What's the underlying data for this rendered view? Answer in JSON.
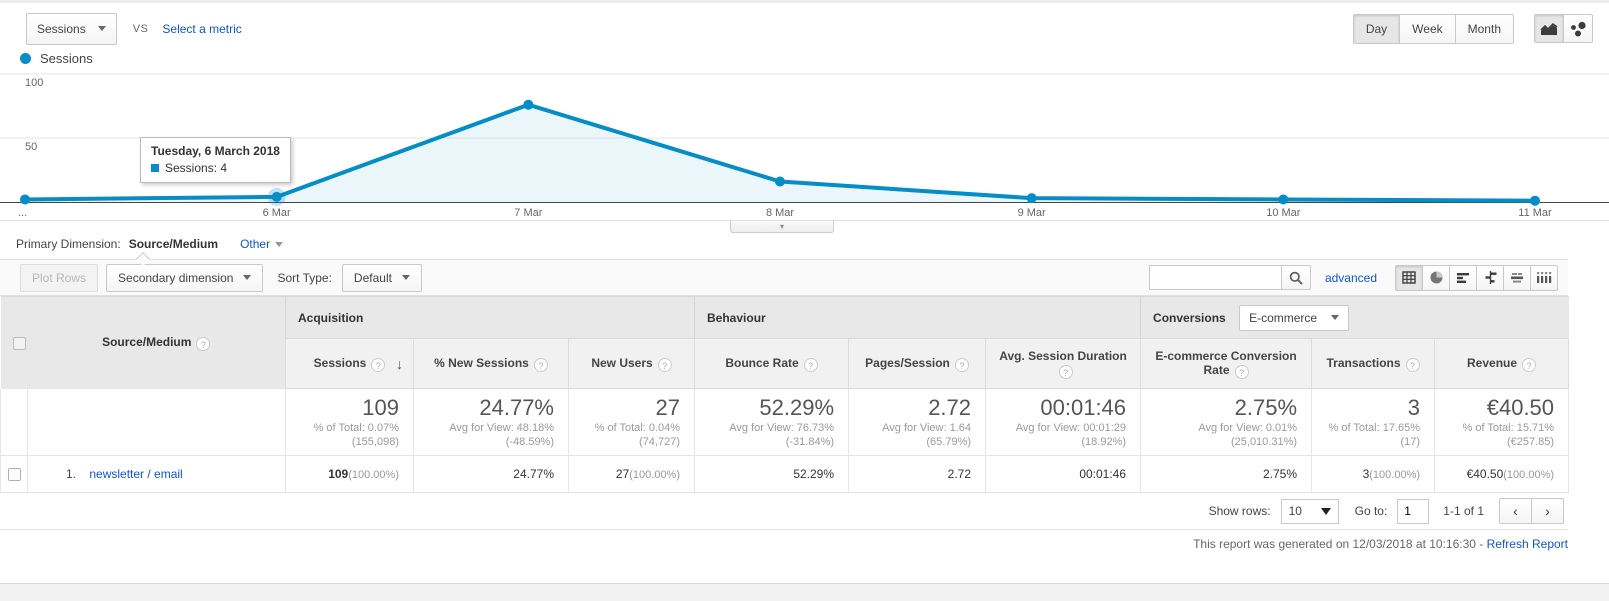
{
  "colors": {
    "accent_blue": "#058dc7",
    "link_blue": "#1155cc"
  },
  "metric_selector": {
    "selected": "Sessions",
    "vs_label": "VS",
    "select_metric_label": "Select a metric"
  },
  "granularity": {
    "options": [
      "Day",
      "Week",
      "Month"
    ],
    "selected": "Day"
  },
  "legend": {
    "label": "Sessions"
  },
  "chart_data": {
    "type": "area",
    "x": [
      "...",
      "6 Mar",
      "7 Mar",
      "8 Mar",
      "9 Mar",
      "10 Mar",
      "11 Mar"
    ],
    "series": [
      {
        "name": "Sessions",
        "values": [
          2,
          4,
          76,
          16,
          3,
          2,
          1
        ],
        "color": "#058dc7"
      }
    ],
    "ylim": [
      0,
      100
    ],
    "yticks": [
      50,
      100
    ],
    "grid": true,
    "highlight_index": 1,
    "tooltip": {
      "title": "Tuesday, 6 March 2018",
      "text": "Sessions: 4"
    }
  },
  "primary_dimension": {
    "label": "Primary Dimension:",
    "selected": "Source/Medium",
    "other_label": "Other"
  },
  "toolbar": {
    "plot_rows_label": "Plot Rows",
    "secondary_dimension_label": "Secondary dimension",
    "sort_type_label": "Sort Type:",
    "sort_type_value": "Default",
    "search_value": "",
    "advanced_label": "advanced"
  },
  "table": {
    "dimension_header": "Source/Medium",
    "groups": [
      {
        "label": "Acquisition"
      },
      {
        "label": "Behaviour"
      },
      {
        "label": "Conversions",
        "selector_value": "E-commerce"
      }
    ],
    "columns": [
      "Sessions",
      "% New Sessions",
      "New Users",
      "Bounce Rate",
      "Pages/Session",
      "Avg. Session Duration",
      "E-commerce Conversion Rate",
      "Transactions",
      "Revenue"
    ],
    "summary": [
      {
        "value": "109",
        "sub1": "% of Total: 0.07%",
        "sub2": "(155,098)"
      },
      {
        "value": "24.77%",
        "sub1": "Avg for View: 48.18%",
        "sub2": "(-48.59%)"
      },
      {
        "value": "27",
        "sub1": "% of Total: 0.04%",
        "sub2": "(74,727)"
      },
      {
        "value": "52.29%",
        "sub1": "Avg for View: 76.73%",
        "sub2": "(-31.84%)"
      },
      {
        "value": "2.72",
        "sub1": "Avg for View: 1.64",
        "sub2": "(65.79%)"
      },
      {
        "value": "00:01:46",
        "sub1": "Avg for View: 00:01:29",
        "sub2": "(18.92%)"
      },
      {
        "value": "2.75%",
        "sub1": "Avg for View: 0.01%",
        "sub2": "(25,010.31%)"
      },
      {
        "value": "3",
        "sub1": "% of Total: 17.65%",
        "sub2": "(17)"
      },
      {
        "value": "€40.50",
        "sub1": "% of Total: 15.71%",
        "sub2": "(€257.85)"
      }
    ],
    "rows": [
      {
        "index": "1.",
        "dimension": "newsletter / email",
        "cells": [
          {
            "v": "109",
            "pct": "(100.00%)"
          },
          {
            "v": "24.77%"
          },
          {
            "v": "27",
            "pct": "(100.00%)"
          },
          {
            "v": "52.29%"
          },
          {
            "v": "2.72"
          },
          {
            "v": "00:01:46"
          },
          {
            "v": "2.75%"
          },
          {
            "v": "3",
            "pct": "(100.00%)"
          },
          {
            "v": "€40.50",
            "pct": "(100.00%)"
          }
        ]
      }
    ]
  },
  "pagination": {
    "show_rows_label": "Show rows:",
    "show_rows_value": "10",
    "goto_label": "Go to:",
    "goto_value": "1",
    "range_text": "1-1 of 1"
  },
  "footer": {
    "generated_text": "This report was generated on 12/03/2018 at 10:16:30 -",
    "refresh_label": "Refresh Report"
  }
}
